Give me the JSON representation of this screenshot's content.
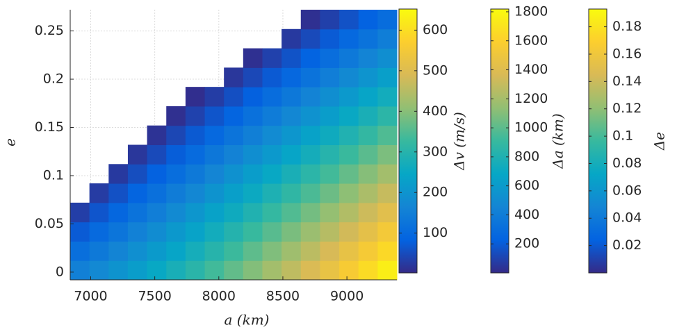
{
  "chart_data": {
    "type": "heatmap",
    "xlabel": "a (km)",
    "ylabel": "e",
    "x_bins": [
      6840,
      6990,
      7140,
      7290,
      7440,
      7590,
      7740,
      7890,
      8040,
      8190,
      8340,
      8490,
      8640,
      8790,
      8940,
      9090,
      9240,
      9390
    ],
    "y_bins": [
      -0.008,
      0.012,
      0.032,
      0.052,
      0.072,
      0.092,
      0.112,
      0.132,
      0.152,
      0.172,
      0.192,
      0.212,
      0.232,
      0.252,
      0.272
    ],
    "z": [
      [
        153,
        173,
        197,
        222,
        249,
        276,
        305,
        335,
        365,
        395,
        428,
        459,
        492,
        525,
        559,
        594,
        629
      ],
      [
        112,
        137,
        162,
        188,
        215,
        242,
        271,
        300,
        330,
        361,
        392,
        423,
        455,
        488,
        521,
        555,
        589
      ],
      [
        72,
        100,
        127,
        154,
        182,
        209,
        237,
        267,
        296,
        326,
        356,
        387,
        418,
        450,
        482,
        515,
        549
      ],
      [
        31,
        64,
        93,
        121,
        148,
        176,
        204,
        233,
        261,
        290,
        321,
        350,
        381,
        412,
        444,
        476,
        508
      ],
      [
        null,
        27,
        58,
        87,
        115,
        143,
        170,
        199,
        227,
        256,
        285,
        314,
        344,
        374,
        405,
        437,
        468
      ],
      [
        null,
        null,
        24,
        53,
        82,
        109,
        137,
        165,
        192,
        221,
        249,
        278,
        307,
        336,
        367,
        397,
        428
      ],
      [
        null,
        null,
        null,
        20,
        48,
        76,
        103,
        131,
        158,
        186,
        213,
        242,
        270,
        299,
        328,
        358,
        388
      ],
      [
        null,
        null,
        null,
        null,
        15,
        43,
        70,
        97,
        124,
        150,
        178,
        205,
        233,
        261,
        289,
        319,
        348
      ],
      [
        null,
        null,
        null,
        null,
        null,
        10,
        36,
        63,
        89,
        116,
        142,
        169,
        196,
        223,
        251,
        279,
        308
      ],
      [
        null,
        null,
        null,
        null,
        null,
        null,
        8,
        29,
        55,
        81,
        106,
        133,
        159,
        186,
        212,
        240,
        267
      ],
      [
        null,
        null,
        null,
        null,
        null,
        null,
        null,
        null,
        20,
        45,
        71,
        96,
        122,
        148,
        174,
        200,
        227
      ],
      [
        null,
        null,
        null,
        null,
        null,
        null,
        null,
        null,
        null,
        11,
        35,
        60,
        85,
        110,
        135,
        161,
        187
      ],
      [
        null,
        null,
        null,
        null,
        null,
        null,
        null,
        null,
        null,
        null,
        null,
        24,
        48,
        72,
        97,
        122,
        147
      ],
      [
        null,
        null,
        null,
        null,
        null,
        null,
        null,
        null,
        null,
        null,
        null,
        null,
        11,
        34,
        59,
        83,
        106
      ]
    ],
    "xlim": [
      6840,
      9390
    ],
    "ylim": [
      -0.008,
      0.272
    ],
    "xticks": [
      7000,
      7500,
      8000,
      8500,
      9000
    ],
    "yticks": [
      0,
      0.05,
      0.1,
      0.15,
      0.2,
      0.25
    ],
    "grid": true,
    "colormap": "parula",
    "colorbars": [
      {
        "label": "Δv (m/s)",
        "lim": [
          2,
          652
        ],
        "ticks": [
          100,
          200,
          300,
          400,
          500,
          600
        ]
      },
      {
        "label": "Δa (km)",
        "lim": [
          0,
          1819
        ],
        "ticks": [
          200,
          400,
          600,
          800,
          1000,
          1200,
          1400,
          1600,
          1800
        ]
      },
      {
        "label": "Δe",
        "lim": [
          0,
          0.193
        ],
        "ticks": [
          0.02,
          0.04,
          0.06,
          0.08,
          0.1,
          0.12,
          0.14,
          0.16,
          0.18
        ]
      }
    ]
  }
}
